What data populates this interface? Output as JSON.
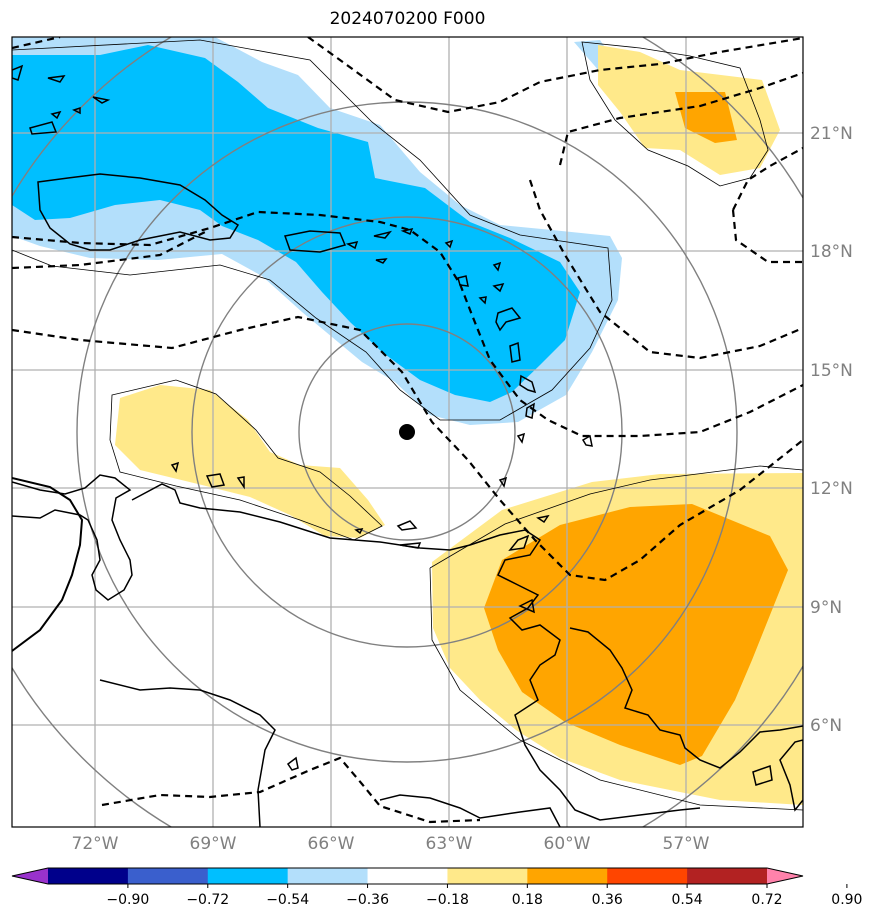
{
  "title": "2024070200 F000",
  "map": {
    "lon_labels": [
      "72°W",
      "69°W",
      "66°W",
      "63°W",
      "60°W",
      "57°W"
    ],
    "lat_labels": [
      "21°N",
      "18°N",
      "15°N",
      "12°N",
      "9°N",
      "6°N"
    ],
    "center_marker": {
      "lon": -64.3,
      "lat": 13.4
    },
    "fill_colors": {
      "neg_0_36_to_0_18": "#b3dffb",
      "neg_0_54_to_0_36": "#00bfff",
      "pos_0_18_to_0_36": "#ffe98a",
      "pos_0_36_to_0_54": "#ffa500"
    }
  },
  "colorbar": {
    "colors": [
      "#9932cc",
      "#00008b",
      "#3a5fcd",
      "#00bfff",
      "#b3dffb",
      "#ffffff",
      "#ffe98a",
      "#ffa500",
      "#ff4500",
      "#b22222",
      "#ff82ab"
    ],
    "tick_labels": [
      "−0.90",
      "−0.72",
      "−0.54",
      "−0.36",
      "−0.18",
      "0.18",
      "0.36",
      "0.54",
      "0.72",
      "0.90"
    ]
  }
}
